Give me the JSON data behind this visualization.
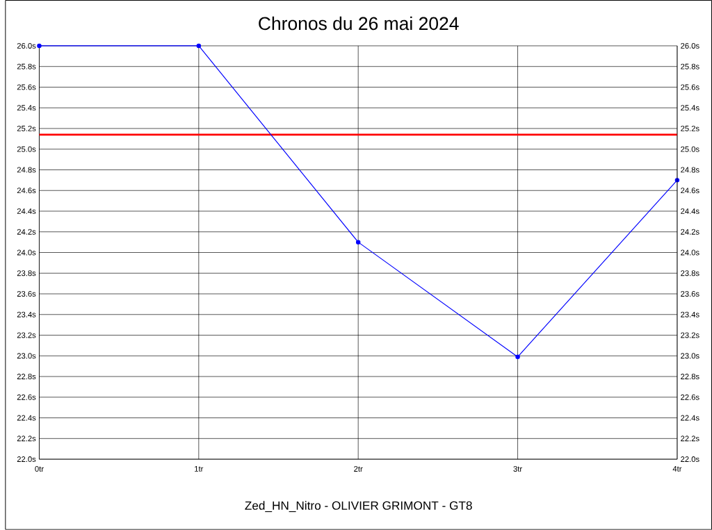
{
  "chart_data": {
    "type": "line",
    "title": "Chronos du 26 mai 2024",
    "xlabel": "Zed_HN_Nitro - OLIVIER GRIMONT - GT8",
    "x": [
      0,
      1,
      2,
      3,
      4
    ],
    "series": [
      {
        "color": "#0000ff",
        "values": [
          26.0,
          26.0,
          24.1,
          22.99,
          24.7
        ]
      }
    ],
    "xlim": [
      0,
      4
    ],
    "xticks": [
      {
        "value": 0,
        "label": "0tr"
      },
      {
        "value": 1,
        "label": "1tr"
      },
      {
        "value": 2,
        "label": "2tr"
      },
      {
        "value": 3,
        "label": "3tr"
      },
      {
        "value": 4,
        "label": "4tr"
      }
    ],
    "ylim": [
      22.0,
      26.0
    ],
    "yticks": [
      {
        "value": 22.0,
        "label": "22.0s"
      },
      {
        "value": 22.2,
        "label": "22.2s"
      },
      {
        "value": 22.4,
        "label": "22.4s"
      },
      {
        "value": 22.6,
        "label": "22.6s"
      },
      {
        "value": 22.8,
        "label": "22.8s"
      },
      {
        "value": 23.0,
        "label": "23.0s"
      },
      {
        "value": 23.2,
        "label": "23.2s"
      },
      {
        "value": 23.4,
        "label": "23.4s"
      },
      {
        "value": 23.6,
        "label": "23.6s"
      },
      {
        "value": 23.8,
        "label": "23.8s"
      },
      {
        "value": 24.0,
        "label": "24.0s"
      },
      {
        "value": 24.2,
        "label": "24.2s"
      },
      {
        "value": 24.4,
        "label": "24.4s"
      },
      {
        "value": 24.6,
        "label": "24.6s"
      },
      {
        "value": 24.8,
        "label": "24.8s"
      },
      {
        "value": 25.0,
        "label": "25.0s"
      },
      {
        "value": 25.2,
        "label": "25.2s"
      },
      {
        "value": 25.4,
        "label": "25.4s"
      },
      {
        "value": 25.6,
        "label": "25.6s"
      },
      {
        "value": 25.8,
        "label": "25.8s"
      },
      {
        "value": 26.0,
        "label": "26.0s"
      }
    ],
    "y2lim": [
      22.0,
      26.0
    ],
    "y2ticks": [
      {
        "value": 22.0,
        "label": "22.0s"
      },
      {
        "value": 22.2,
        "label": "22.2s"
      },
      {
        "value": 22.4,
        "label": "22.4s"
      },
      {
        "value": 22.6,
        "label": "22.6s"
      },
      {
        "value": 22.8,
        "label": "22.8s"
      },
      {
        "value": 23.0,
        "label": "23.0s"
      },
      {
        "value": 23.2,
        "label": "23.2s"
      },
      {
        "value": 23.4,
        "label": "23.4s"
      },
      {
        "value": 23.6,
        "label": "23.6s"
      },
      {
        "value": 23.8,
        "label": "23.8s"
      },
      {
        "value": 24.0,
        "label": "24.0s"
      },
      {
        "value": 24.2,
        "label": "24.2s"
      },
      {
        "value": 24.4,
        "label": "24.4s"
      },
      {
        "value": 24.6,
        "label": "24.6s"
      },
      {
        "value": 24.8,
        "label": "24.8s"
      },
      {
        "value": 25.0,
        "label": "25.0s"
      },
      {
        "value": 25.2,
        "label": "25.2s"
      },
      {
        "value": 25.4,
        "label": "25.4s"
      },
      {
        "value": 25.6,
        "label": "25.6s"
      },
      {
        "value": 25.8,
        "label": "25.8s"
      },
      {
        "value": 26.0,
        "label": "26.0s"
      }
    ],
    "ref_lines": [
      {
        "axis": "y",
        "value": 25.14,
        "color": "#ff0000"
      }
    ],
    "grid": true,
    "marker": "circle",
    "line_style": "solid"
  }
}
